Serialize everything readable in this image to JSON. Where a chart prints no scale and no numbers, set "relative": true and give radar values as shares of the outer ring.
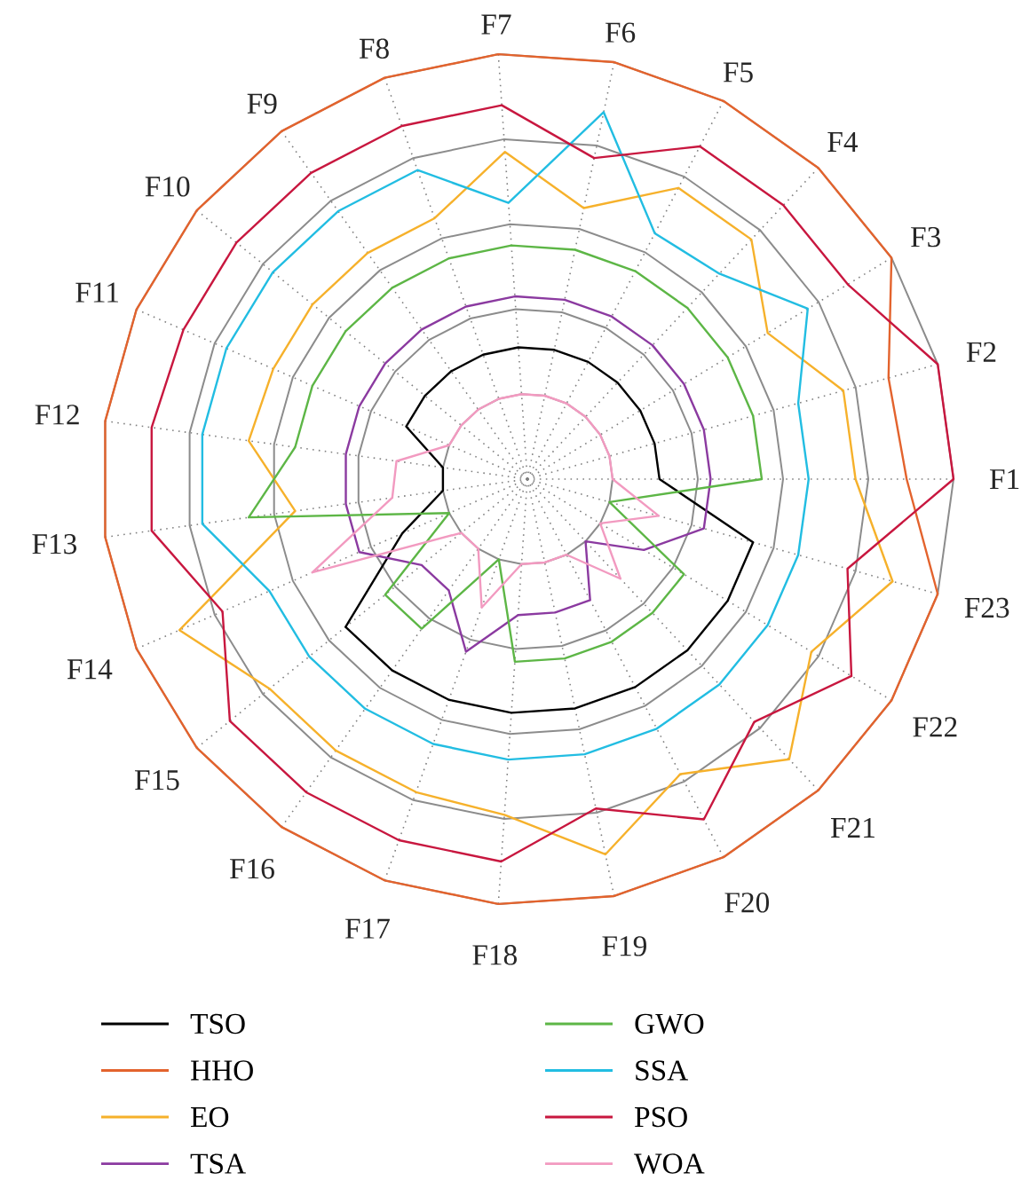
{
  "chart_data": {
    "type": "radar",
    "relative": true,
    "grid": true,
    "legend": "bottom",
    "categories": [
      "F7",
      "F6",
      "F5",
      "F4",
      "F3",
      "F2",
      "F1",
      "F23",
      "F22",
      "F21",
      "F20",
      "F19",
      "F18",
      "F17",
      "F16",
      "F15",
      "F14",
      "F13",
      "F12",
      "F11",
      "F10",
      "F9",
      "F8"
    ],
    "series": [
      {
        "name": "TSO",
        "color": "#000000",
        "values": [
          0.31,
          0.31,
          0.31,
          0.31,
          0.31,
          0.31,
          0.31,
          0.55,
          0.55,
          0.55,
          0.55,
          0.55,
          0.55,
          0.55,
          0.55,
          0.55,
          0.32,
          0.2,
          0.2,
          0.31,
          0.31,
          0.31,
          0.31
        ]
      },
      {
        "name": "HHO",
        "color": "#e3632d",
        "values": [
          1.0,
          1.0,
          1.0,
          1.0,
          1.0,
          0.88,
          0.89,
          1.0,
          1.0,
          1.0,
          1.0,
          1.0,
          1.0,
          1.0,
          1.0,
          1.0,
          1.0,
          1.0,
          1.0,
          1.0,
          1.0,
          1.0,
          1.0
        ]
      },
      {
        "name": "EO",
        "color": "#f6b12b",
        "values": [
          0.77,
          0.65,
          0.77,
          0.77,
          0.66,
          0.77,
          0.77,
          0.89,
          0.78,
          0.9,
          0.78,
          0.9,
          0.79,
          0.78,
          0.78,
          0.78,
          0.89,
          0.55,
          0.66,
          0.65,
          0.65,
          0.65,
          0.65
        ]
      },
      {
        "name": "TSA",
        "color": "#8b3aa0",
        "values": [
          0.43,
          0.43,
          0.43,
          0.43,
          0.43,
          0.43,
          0.43,
          0.43,
          0.32,
          0.2,
          0.32,
          0.32,
          0.32,
          0.43,
          0.32,
          0.32,
          0.43,
          0.43,
          0.43,
          0.43,
          0.43,
          0.43,
          0.43
        ]
      },
      {
        "name": "GWO",
        "color": "#5db646",
        "values": [
          0.55,
          0.55,
          0.55,
          0.55,
          0.55,
          0.55,
          0.55,
          0.2,
          0.43,
          0.43,
          0.43,
          0.43,
          0.43,
          0.2,
          0.43,
          0.43,
          0.2,
          0.66,
          0.55,
          0.55,
          0.55,
          0.55,
          0.55
        ]
      },
      {
        "name": "SSA",
        "color": "#22bde2",
        "values": [
          0.65,
          0.88,
          0.65,
          0.66,
          0.77,
          0.66,
          0.66,
          0.66,
          0.66,
          0.66,
          0.66,
          0.66,
          0.66,
          0.66,
          0.66,
          0.66,
          0.66,
          0.77,
          0.77,
          0.77,
          0.77,
          0.77,
          0.77
        ]
      },
      {
        "name": "PSO",
        "color": "#c8173f",
        "values": [
          0.88,
          0.77,
          0.88,
          0.88,
          0.88,
          1.0,
          1.0,
          0.78,
          0.89,
          0.78,
          0.9,
          0.79,
          0.9,
          0.9,
          0.9,
          0.9,
          0.78,
          0.89,
          0.89,
          0.88,
          0.88,
          0.88,
          0.88
        ]
      },
      {
        "name": "WOA",
        "color": "#f29ac0",
        "values": [
          0.2,
          0.2,
          0.2,
          0.2,
          0.2,
          0.2,
          0.2,
          0.32,
          0.2,
          0.32,
          0.2,
          0.2,
          0.2,
          0.32,
          0.2,
          0.2,
          0.55,
          0.32,
          0.31,
          0.2,
          0.2,
          0.2,
          0.2
        ]
      }
    ]
  }
}
